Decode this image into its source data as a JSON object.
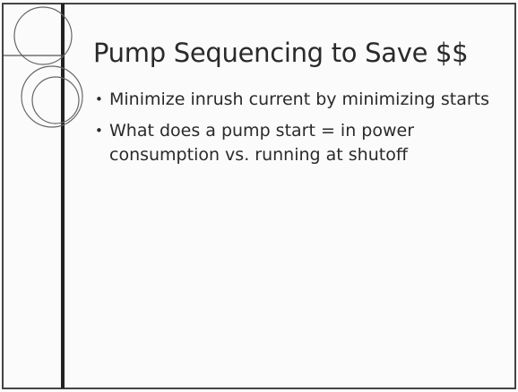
{
  "slide": {
    "title": "Pump Sequencing to Save $$",
    "bullets": [
      "Minimize inrush current by minimizing starts",
      "What does a pump start = in power consumption vs. running at shutoff"
    ]
  }
}
